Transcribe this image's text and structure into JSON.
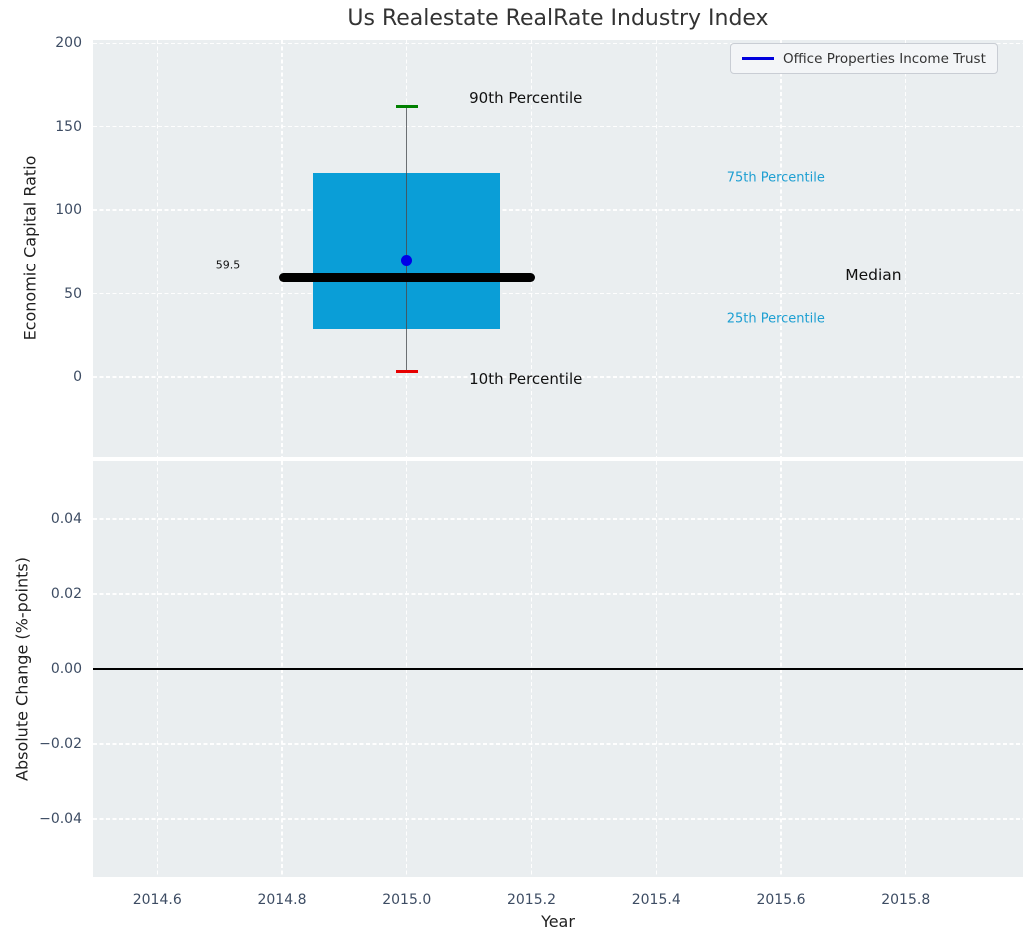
{
  "chart_data": [
    {
      "type": "boxplot",
      "title": "Us Realestate RealRate Industry Index",
      "xlabel": "Year",
      "ylabel": "Economic Capital Ratio",
      "x": 2015.0,
      "percentiles": {
        "p10": 3.5,
        "p25": 29,
        "median": 59.5,
        "p75": 122,
        "p90": 162
      },
      "median_label": "59.5",
      "company_point": {
        "name": "Office Properties Income Trust",
        "x": 2015.0,
        "y": 70
      },
      "box_halfwidth": 0.15,
      "median_line_halfwidth": 0.205,
      "legend": [
        "Office Properties Income Trust"
      ],
      "legend_position": "upper right",
      "grid": true,
      "xlim": [
        2014.497,
        2015.988
      ],
      "ylim": [
        -48,
        202
      ],
      "xtick_values": [
        2014.6,
        2014.8,
        2015.0,
        2015.2,
        2015.4,
        2015.6,
        2015.8
      ],
      "xtick_labels": [
        "2014.6",
        "2014.8",
        "2015.0",
        "2015.2",
        "2015.4",
        "2015.6",
        "2015.8"
      ],
      "ytick_values": [
        0,
        50,
        100,
        150,
        200
      ],
      "ytick_labels": [
        "0",
        "50",
        "100",
        "150",
        "200"
      ],
      "annotations": [
        {
          "text": "90th Percentile",
          "color": "#111111",
          "size": 15,
          "x": 2015.1,
          "y": 167,
          "ha": "left"
        },
        {
          "text": "10th Percentile",
          "color": "#111111",
          "size": 15,
          "x": 2015.1,
          "y": -1,
          "ha": "left"
        },
        {
          "text": "75th Percentile",
          "color": "#1d9fd2",
          "size": 13,
          "x": 2015.513,
          "y": 119,
          "ha": "left"
        },
        {
          "text": "Median",
          "color": "#111111",
          "size": 15.5,
          "x": 2015.703,
          "y": 61,
          "ha": "left"
        },
        {
          "text": "25th Percentile",
          "color": "#1d9fd2",
          "size": 13,
          "x": 2015.513,
          "y": 35,
          "ha": "left"
        },
        {
          "text": "59.5",
          "color": "#111111",
          "size": 11,
          "x": 2014.733,
          "y": 67,
          "ha": "right"
        }
      ],
      "colors": {
        "box_fill": "#0a9ed7",
        "median_line": "#000000",
        "whisker": "#6b6f73",
        "cap_top": "#008000",
        "cap_bottom": "#e60000",
        "company_point": "#0000e8",
        "legend_line": "#0000dd",
        "percentile_label": "#1d9fd2",
        "plot_background": "#eaeef0",
        "tick_label": "#3d4c63"
      }
    },
    {
      "type": "line",
      "xlabel": "Year",
      "ylabel": "Absolute Change (%-points)",
      "series": [],
      "zero_line": 0.0,
      "grid": true,
      "xlim": [
        2014.497,
        2015.988
      ],
      "ylim": [
        -0.0555,
        0.0555
      ],
      "ytick_values": [
        0.04,
        0.02,
        0.0,
        -0.02,
        -0.04
      ],
      "ytick_labels": [
        "0.04",
        "0.02",
        "0.00",
        "−0.02",
        "−0.04"
      ]
    }
  ]
}
